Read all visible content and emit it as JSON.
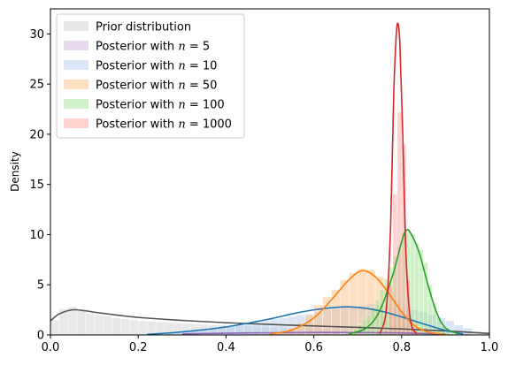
{
  "chart_data": {
    "type": "area",
    "title": "",
    "xlabel": "",
    "ylabel": "Density",
    "xlim": [
      0,
      1
    ],
    "ylim": [
      0,
      32.5
    ],
    "xticks": [
      "0.0",
      "0.2",
      "0.4",
      "0.6",
      "0.8",
      "1.0"
    ],
    "yticks": [
      "0",
      "5",
      "10",
      "15",
      "20",
      "25",
      "30"
    ],
    "grid": false,
    "legend_position": "top-left",
    "series": [
      {
        "name": "Prior distribution",
        "color": "#555555",
        "fill": "#cccccc",
        "bins": {
          "start": 0.0,
          "width": 0.02,
          "heights": [
            1.5,
            2.6,
            2.8,
            2.4,
            2.2,
            2.0,
            1.9,
            1.7,
            1.6,
            1.5,
            1.4,
            1.35,
            1.3,
            1.25,
            1.2,
            1.15,
            1.1,
            1.05,
            1.0,
            1.0,
            0.95,
            0.9,
            0.88,
            0.85,
            0.83,
            0.8,
            0.78,
            0.75,
            0.73,
            0.7,
            0.68,
            0.66,
            0.64,
            0.62,
            0.6,
            0.58,
            0.56,
            0.54,
            0.52,
            0.5,
            0.48,
            0.46,
            0.44,
            0.42,
            0.4,
            0.38,
            0.36,
            0.34,
            0.32,
            0.3
          ]
        },
        "kde": {
          "x": [
            0.0,
            0.02,
            0.05,
            0.08,
            0.12,
            0.2,
            0.3,
            0.4,
            0.5,
            0.6,
            0.7,
            0.8,
            0.9,
            1.0
          ],
          "y": [
            1.4,
            2.1,
            2.5,
            2.4,
            2.15,
            1.75,
            1.45,
            1.22,
            1.05,
            0.9,
            0.75,
            0.6,
            0.4,
            0.15
          ]
        }
      },
      {
        "name": "Posterior with n = 5",
        "label_prefix": "Posterior with ",
        "label_var": "n",
        "label_value": " = 5",
        "color": "#9467bd",
        "fill": "#c5b0d5",
        "bins": {
          "start": 0.3,
          "width": 0.02,
          "heights": [
            0.1,
            0.12,
            0.14,
            0.15,
            0.16,
            0.17,
            0.18,
            0.19,
            0.2,
            0.2,
            0.21,
            0.22,
            0.22,
            0.23,
            0.23,
            0.24,
            0.24,
            0.24,
            0.25,
            0.25,
            0.25,
            0.24,
            0.24,
            0.23,
            0.22,
            0.2,
            0.18,
            0.15,
            0.12,
            0.08
          ]
        },
        "kde": {
          "x": [
            0.3,
            0.4,
            0.5,
            0.6,
            0.7,
            0.8,
            0.9
          ],
          "y": [
            0.1,
            0.18,
            0.22,
            0.25,
            0.24,
            0.2,
            0.08
          ]
        }
      },
      {
        "name": "Posterior with n = 10",
        "label_prefix": "Posterior with ",
        "label_var": "n",
        "label_value": " = 10",
        "color": "#1f77b4",
        "fill": "#aec7e8",
        "bins": {
          "start": 0.22,
          "width": 0.02,
          "heights": [
            0.05,
            0.1,
            0.15,
            0.2,
            0.3,
            0.4,
            0.5,
            0.6,
            0.75,
            0.9,
            1.0,
            1.15,
            1.3,
            1.45,
            1.6,
            1.7,
            1.85,
            2.0,
            2.1,
            2.3,
            2.5,
            2.6,
            2.8,
            2.7,
            2.9,
            3.1,
            3.0,
            2.8,
            2.6,
            2.9,
            2.5,
            2.3,
            2.0,
            1.7,
            1.4,
            1.0,
            0.7
          ]
        },
        "kde": {
          "x": [
            0.22,
            0.3,
            0.4,
            0.5,
            0.55,
            0.6,
            0.65,
            0.68,
            0.72,
            0.76,
            0.8,
            0.85,
            0.9,
            0.94
          ],
          "y": [
            0.05,
            0.3,
            0.8,
            1.6,
            2.1,
            2.5,
            2.75,
            2.8,
            2.65,
            2.3,
            1.8,
            1.1,
            0.45,
            0.1
          ]
        }
      },
      {
        "name": "Posterior with n = 50",
        "label_prefix": "Posterior with ",
        "label_var": "n",
        "label_value": " = 50",
        "color": "#ff7f0e",
        "fill": "#ffbb78",
        "bins": {
          "start": 0.5,
          "width": 0.02,
          "heights": [
            0.1,
            0.3,
            0.7,
            1.2,
            2.0,
            3.0,
            3.8,
            4.5,
            5.5,
            6.2,
            6.6,
            6.5,
            5.8,
            4.8,
            3.5,
            2.5,
            1.4,
            0.8,
            0.3,
            0.1
          ]
        },
        "kde": {
          "x": [
            0.5,
            0.55,
            0.6,
            0.64,
            0.68,
            0.71,
            0.74,
            0.77,
            0.8,
            0.83,
            0.86,
            0.9
          ],
          "y": [
            0.1,
            0.5,
            1.7,
            3.5,
            5.5,
            6.4,
            5.8,
            4.2,
            2.3,
            0.9,
            0.3,
            0.05
          ]
        }
      },
      {
        "name": "Posterior with n = 100",
        "label_prefix": "Posterior with ",
        "label_var": "n",
        "label_value": " = 100",
        "color": "#2ca02c",
        "fill": "#98df8a",
        "bins": {
          "start": 0.66,
          "width": 0.01,
          "heights": [
            0.1,
            0.2,
            0.4,
            0.6,
            1.0,
            1.5,
            2.0,
            2.8,
            3.5,
            4.5,
            5.6,
            6.8,
            7.8,
            8.8,
            10.2,
            10.5,
            10.0,
            9.2,
            8.5,
            7.2,
            5.0,
            3.2,
            1.8,
            0.9,
            0.4,
            0.15
          ]
        },
        "kde": {
          "x": [
            0.68,
            0.72,
            0.75,
            0.78,
            0.8,
            0.81,
            0.82,
            0.84,
            0.86,
            0.88,
            0.9,
            0.93
          ],
          "y": [
            0.1,
            0.7,
            2.4,
            6.0,
            9.3,
            10.4,
            10.2,
            8.2,
            5.0,
            2.2,
            0.7,
            0.1
          ]
        }
      },
      {
        "name": "Posterior with n = 1000",
        "label_prefix": "Posterior with ",
        "label_var": "n",
        "label_value": " = 1000",
        "color": "#d62728",
        "fill": "#ff9896",
        "bins": {
          "start": 0.76,
          "width": 0.01,
          "heights": [
            0.5,
            5.0,
            14.0,
            22.2,
            19.0,
            5.5,
            0.8
          ]
        },
        "kde": {
          "x": [
            0.75,
            0.765,
            0.775,
            0.782,
            0.788,
            0.792,
            0.796,
            0.802,
            0.81,
            0.82,
            0.835
          ],
          "y": [
            0.1,
            2.5,
            11.0,
            24.0,
            30.0,
            31.0,
            29.0,
            21.0,
            8.0,
            1.5,
            0.1
          ]
        }
      }
    ]
  }
}
